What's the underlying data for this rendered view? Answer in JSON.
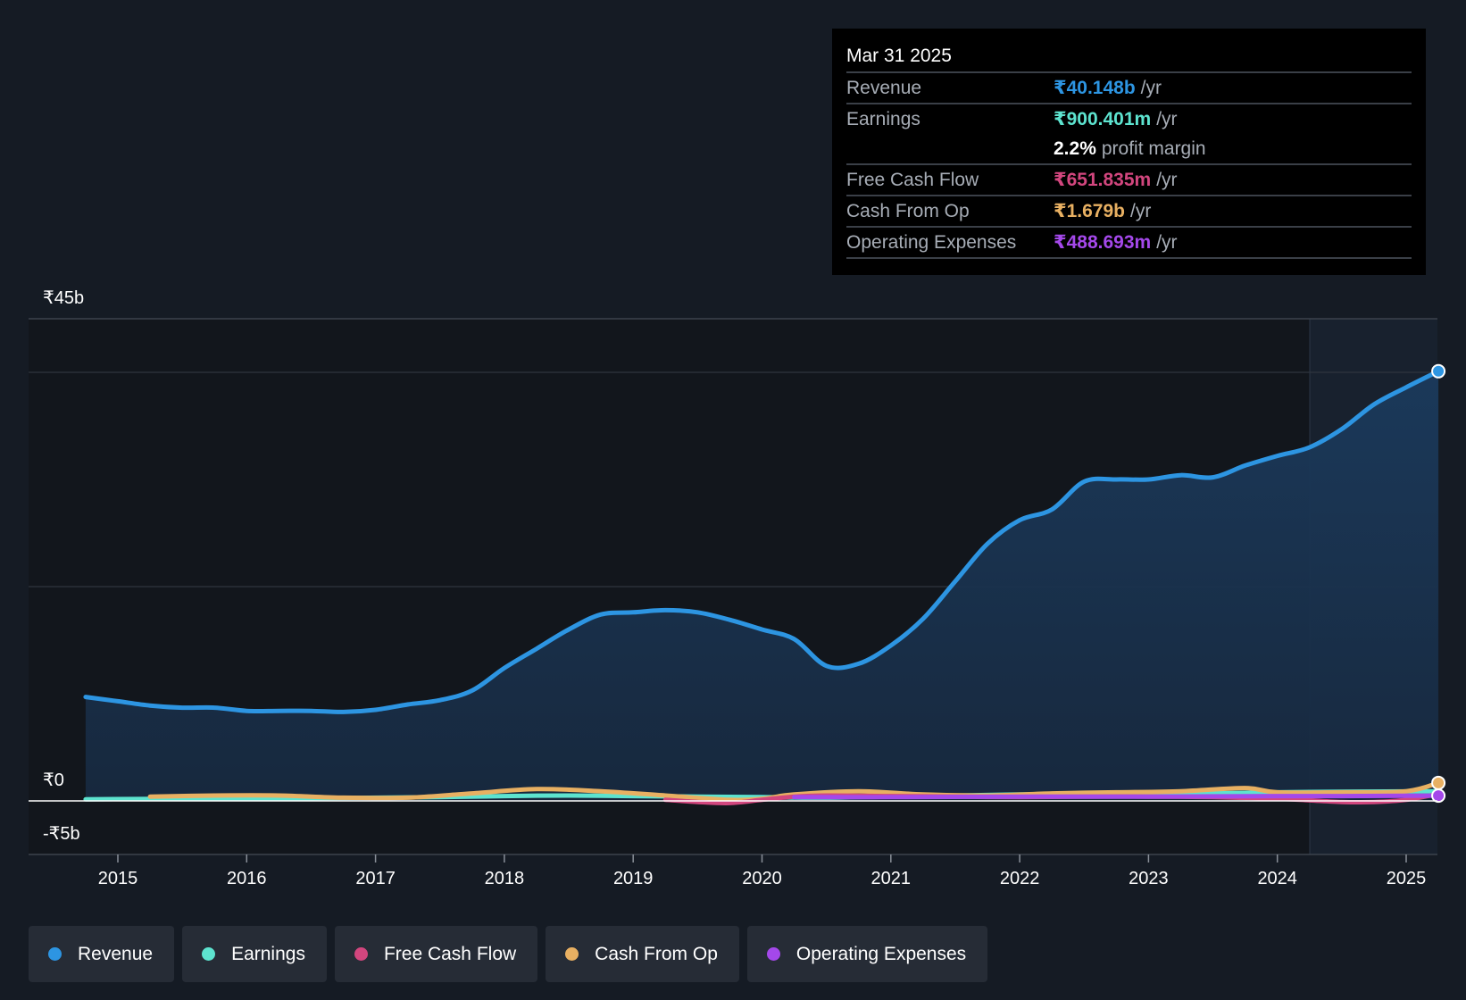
{
  "tooltip": {
    "date": "Mar 31 2025",
    "rows": [
      {
        "name": "Revenue",
        "value": "₹40.148b",
        "unit": "/yr",
        "color": "#2d95e2"
      },
      {
        "name": "Earnings",
        "value": "₹900.401m",
        "unit": "/yr",
        "color": "#5de3cf"
      },
      {
        "margin_value": "2.2%",
        "margin_label": "profit margin"
      },
      {
        "name": "Free Cash Flow",
        "value": "₹651.835m",
        "unit": "/yr",
        "color": "#d2467e"
      },
      {
        "name": "Cash From Op",
        "value": "₹1.679b",
        "unit": "/yr",
        "color": "#e8b062"
      },
      {
        "name": "Operating Expenses",
        "value": "₹488.693m",
        "unit": "/yr",
        "color": "#a448ea"
      }
    ]
  },
  "legend": [
    {
      "label": "Revenue",
      "color": "#2d95e2"
    },
    {
      "label": "Earnings",
      "color": "#5de3cf"
    },
    {
      "label": "Free Cash Flow",
      "color": "#d2467e"
    },
    {
      "label": "Cash From Op",
      "color": "#e8b062"
    },
    {
      "label": "Operating Expenses",
      "color": "#a448ea"
    }
  ],
  "chart_data": {
    "type": "area",
    "y_ticks": [
      "₹45b",
      "₹0",
      "-₹5b"
    ],
    "x_ticks": [
      "2015",
      "2016",
      "2017",
      "2018",
      "2019",
      "2020",
      "2021",
      "2022",
      "2023",
      "2024",
      "2025"
    ],
    "ylim": [
      -5,
      45
    ],
    "xlim": [
      2014.3,
      2025.25
    ],
    "grid": true,
    "series": [
      {
        "name": "Revenue",
        "color": "#2d95e2",
        "x": [
          2014.75,
          2015.0,
          2015.25,
          2015.5,
          2015.75,
          2016.0,
          2016.25,
          2016.5,
          2016.75,
          2017.0,
          2017.25,
          2017.5,
          2017.75,
          2018.0,
          2018.25,
          2018.5,
          2018.75,
          2019.0,
          2019.25,
          2019.5,
          2019.75,
          2020.0,
          2020.25,
          2020.5,
          2020.75,
          2021.0,
          2021.25,
          2021.5,
          2021.75,
          2022.0,
          2022.25,
          2022.5,
          2022.75,
          2023.0,
          2023.25,
          2023.5,
          2023.75,
          2024.0,
          2024.25,
          2024.5,
          2024.75,
          2025.0,
          2025.25
        ],
        "values": [
          9.7,
          9.3,
          8.9,
          8.7,
          8.7,
          8.4,
          8.4,
          8.4,
          8.3,
          8.5,
          9.0,
          9.4,
          10.3,
          12.4,
          14.2,
          16.0,
          17.4,
          17.6,
          17.8,
          17.6,
          16.9,
          16.0,
          15.1,
          12.6,
          12.8,
          14.5,
          17.0,
          20.5,
          24.0,
          26.2,
          27.2,
          29.8,
          30.0,
          30.0,
          30.4,
          30.2,
          31.3,
          32.2,
          33.0,
          34.7,
          37.0,
          38.6,
          40.1
        ]
      },
      {
        "name": "Earnings",
        "color": "#5de3cf",
        "x": [
          2014.75,
          2015.5,
          2016.5,
          2017.5,
          2018.0,
          2018.5,
          2019.0,
          2019.5,
          2020.0,
          2020.5,
          2021.0,
          2021.5,
          2022.0,
          2022.5,
          2023.0,
          2023.5,
          2024.0,
          2024.5,
          2025.0,
          2025.25
        ],
        "values": [
          0.15,
          0.2,
          0.25,
          0.35,
          0.45,
          0.5,
          0.45,
          0.4,
          0.35,
          0.3,
          0.4,
          0.5,
          0.6,
          0.65,
          0.6,
          0.7,
          0.8,
          0.85,
          0.88,
          0.9
        ]
      },
      {
        "name": "Free Cash Flow",
        "color": "#d2467e",
        "x": [
          2019.25,
          2019.5,
          2019.75,
          2020.0,
          2020.25,
          2020.5,
          2021.0,
          2021.5,
          2022.0,
          2022.5,
          2023.0,
          2023.5,
          2024.0,
          2024.25,
          2024.5,
          2024.75,
          2025.0,
          2025.25
        ],
        "values": [
          0.1,
          -0.1,
          -0.2,
          0.1,
          0.4,
          0.5,
          0.45,
          0.4,
          0.35,
          0.4,
          0.4,
          0.35,
          0.2,
          0.05,
          -0.1,
          -0.1,
          0.1,
          0.65
        ]
      },
      {
        "name": "Cash From Op",
        "color": "#e8b062",
        "x": [
          2015.25,
          2015.75,
          2016.25,
          2016.75,
          2017.25,
          2017.75,
          2018.25,
          2018.75,
          2019.25,
          2019.75,
          2020.0,
          2020.25,
          2020.75,
          2021.25,
          2021.75,
          2022.25,
          2022.75,
          2023.25,
          2023.75,
          2024.0,
          2024.5,
          2025.0,
          2025.25
        ],
        "values": [
          0.4,
          0.5,
          0.5,
          0.3,
          0.3,
          0.7,
          1.1,
          0.9,
          0.5,
          0.1,
          0.2,
          0.6,
          0.9,
          0.6,
          0.5,
          0.7,
          0.8,
          0.9,
          1.2,
          0.8,
          0.8,
          0.9,
          1.68
        ]
      },
      {
        "name": "Operating Expenses",
        "color": "#a448ea",
        "x": [
          2020.25,
          2021.0,
          2022.0,
          2023.0,
          2024.0,
          2024.5,
          2025.0,
          2025.25
        ],
        "values": [
          0.35,
          0.35,
          0.4,
          0.4,
          0.45,
          0.45,
          0.48,
          0.49
        ]
      }
    ]
  }
}
